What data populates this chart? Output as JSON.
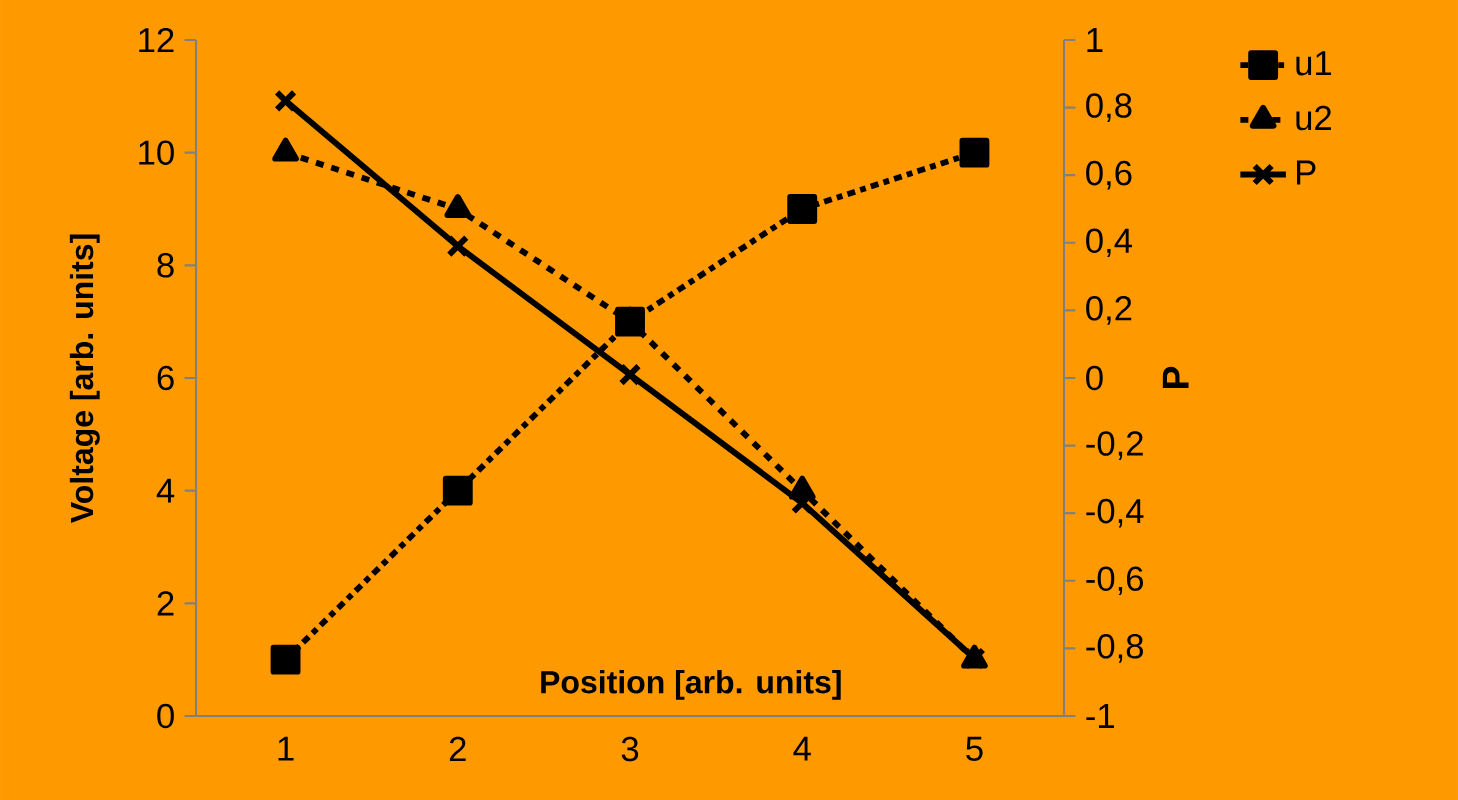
{
  "chart_data": {
    "type": "line",
    "xlabel": "Position [arb. units]",
    "ylabel": "Voltage [arb. units]",
    "y2label": "P",
    "categories": [
      "1",
      "2",
      "3",
      "4",
      "5"
    ],
    "series": [
      {
        "name": "u1",
        "color": "#000000",
        "values": [
          1,
          4,
          7,
          9,
          10
        ],
        "marker": "square",
        "line_style": "dashdot"
      },
      {
        "name": "u2",
        "color": "#000000",
        "values": [
          10,
          9,
          7,
          4,
          1
        ],
        "marker": "triangle",
        "line_style": "dashed"
      },
      {
        "name": "P",
        "color": "#000000",
        "values": [
          0.82,
          0.39,
          0.01,
          -0.37,
          -0.83
        ],
        "marker": "cross",
        "line_style": "solid",
        "axis": "y2"
      }
    ],
    "ylim": [
      0,
      12
    ],
    "yticks": [
      0,
      2,
      4,
      6,
      8,
      10,
      12
    ],
    "y2lim": [
      -1,
      1
    ],
    "y2ticks": [
      -1,
      {
        "value": -0.8,
        "label": "-0,8"
      },
      {
        "value": -0.6,
        "label": "-0,6"
      },
      {
        "value": -0.4,
        "label": "-0,4"
      },
      {
        "value": -0.2,
        "label": "-0,2"
      },
      0,
      {
        "value": 0.2,
        "label": "0,2"
      },
      {
        "value": 0.4,
        "label": "0,4"
      },
      {
        "value": 0.6,
        "label": "0,6"
      },
      {
        "value": 0.8,
        "label": "0,8"
      },
      1
    ],
    "legend": "right"
  }
}
